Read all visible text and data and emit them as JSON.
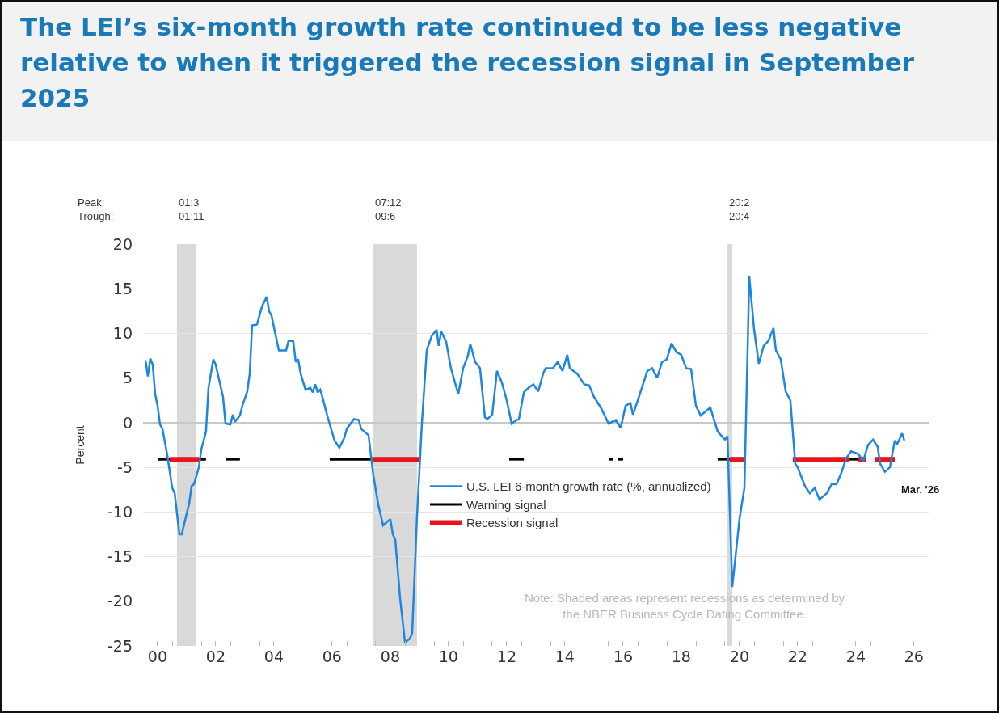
{
  "chart_data": {
    "type": "line",
    "title": "The LEI’s six-month growth rate continued to be less negative relative to when it triggered the recession signal in September 2025",
    "ylabel": "Percent",
    "xlim": [
      "2000-01",
      "2027-01"
    ],
    "xticks": [
      {
        "value": "2000-07",
        "label": "00"
      },
      {
        "value": "2001-01",
        "label": null
      },
      {
        "value": "2002-01",
        "label": null
      },
      {
        "value": "2002-07",
        "label": "02"
      },
      {
        "value": "2003-01",
        "label": null
      },
      {
        "value": "2004-01",
        "label": null
      },
      {
        "value": "2004-07",
        "label": "04"
      },
      {
        "value": "2005-01",
        "label": null
      },
      {
        "value": "2006-01",
        "label": null
      },
      {
        "value": "2006-07",
        "label": "06"
      },
      {
        "value": "2007-01",
        "label": null
      },
      {
        "value": "2008-01",
        "label": null
      },
      {
        "value": "2008-07",
        "label": "08"
      },
      {
        "value": "2009-01",
        "label": null
      },
      {
        "value": "2010-01",
        "label": null
      },
      {
        "value": "2010-07",
        "label": "10"
      },
      {
        "value": "2011-01",
        "label": null
      },
      {
        "value": "2012-01",
        "label": null
      },
      {
        "value": "2012-07",
        "label": "12"
      },
      {
        "value": "2013-01",
        "label": null
      },
      {
        "value": "2014-01",
        "label": null
      },
      {
        "value": "2014-07",
        "label": "14"
      },
      {
        "value": "2015-01",
        "label": null
      },
      {
        "value": "2016-01",
        "label": null
      },
      {
        "value": "2016-07",
        "label": "16"
      },
      {
        "value": "2017-01",
        "label": null
      },
      {
        "value": "2018-01",
        "label": null
      },
      {
        "value": "2018-07",
        "label": "18"
      },
      {
        "value": "2019-01",
        "label": null
      },
      {
        "value": "2020-01",
        "label": null
      },
      {
        "value": "2020-07",
        "label": "20"
      },
      {
        "value": "2021-01",
        "label": null
      },
      {
        "value": "2022-01",
        "label": null
      },
      {
        "value": "2022-07",
        "label": "22"
      },
      {
        "value": "2023-01",
        "label": null
      },
      {
        "value": "2024-01",
        "label": null
      },
      {
        "value": "2024-07",
        "label": "24"
      },
      {
        "value": "2025-01",
        "label": null
      },
      {
        "value": "2026-01",
        "label": null
      },
      {
        "value": "2026-07",
        "label": "26"
      }
    ],
    "ylim": [
      -25,
      20
    ],
    "yticks": [
      -25,
      -20,
      -15,
      -10,
      -5,
      0,
      5,
      10,
      15,
      20
    ],
    "grid": "y",
    "legend": "center",
    "series": [
      {
        "name": "U.S. LEI 6-month growth rate (%, annualized)",
        "color": "#1f86e0",
        "x": [
          "2000-02",
          "2000-03",
          "2000-04",
          "2000-05",
          "2000-06",
          "2000-07",
          "2000-08",
          "2000-09",
          "2000-11",
          "2001-01",
          "2001-02",
          "2001-04",
          "2001-05",
          "2001-07",
          "2001-08",
          "2001-09",
          "2001-10",
          "2001-12",
          "2002-01",
          "2002-03",
          "2002-04",
          "2002-06",
          "2002-07",
          "2002-10",
          "2002-11",
          "2003-01",
          "2003-02",
          "2003-03",
          "2003-05",
          "2003-06",
          "2003-08",
          "2003-09",
          "2003-10",
          "2003-12",
          "2004-02",
          "2004-04",
          "2004-05",
          "2004-06",
          "2004-07",
          "2004-09",
          "2004-12",
          "2005-01",
          "2005-03",
          "2005-04",
          "2005-05",
          "2005-06",
          "2005-08",
          "2005-10",
          "2005-11",
          "2005-12",
          "2006-01",
          "2006-02",
          "2006-03",
          "2006-05",
          "2006-08",
          "2006-10",
          "2006-12",
          "2007-01",
          "2007-04",
          "2007-06",
          "2007-07",
          "2007-10",
          "2007-11",
          "2007-12",
          "2008-02",
          "2008-04",
          "2008-07",
          "2008-08",
          "2008-09",
          "2008-11",
          "2009-01",
          "2009-03",
          "2009-04",
          "2009-06",
          "2009-08",
          "2009-10",
          "2009-12",
          "2010-02",
          "2010-03",
          "2010-04",
          "2010-06",
          "2010-08",
          "2010-11",
          "2011-01",
          "2011-03",
          "2011-04",
          "2011-06",
          "2011-08",
          "2011-10",
          "2011-11",
          "2012-01",
          "2012-03",
          "2012-05",
          "2012-07",
          "2012-09",
          "2012-11",
          "2012-12",
          "2013-02",
          "2013-04",
          "2013-06",
          "2013-08",
          "2013-10",
          "2013-11",
          "2014-02",
          "2014-04",
          "2014-06",
          "2014-08",
          "2014-09",
          "2014-12",
          "2015-03",
          "2015-05",
          "2015-07",
          "2015-10",
          "2016-01",
          "2016-04",
          "2016-06",
          "2016-08",
          "2016-10",
          "2016-11",
          "2017-01",
          "2017-05",
          "2017-07",
          "2017-09",
          "2017-11",
          "2018-01",
          "2018-03",
          "2018-05",
          "2018-07",
          "2018-09",
          "2018-11",
          "2019-01",
          "2019-03",
          "2019-07",
          "2019-10",
          "2020-01",
          "2020-02",
          "2020-04",
          "2020-07",
          "2020-09",
          "2020-11",
          "2021-01",
          "2021-03",
          "2021-05",
          "2021-07",
          "2021-09",
          "2021-10",
          "2021-12",
          "2022-02",
          "2022-04",
          "2022-06",
          "2022-07",
          "2022-10",
          "2022-12",
          "2023-02",
          "2023-04",
          "2023-07",
          "2023-09",
          "2023-11",
          "2024-01",
          "2024-03",
          "2024-05",
          "2024-08",
          "2024-10",
          "2024-12",
          "2025-02",
          "2025-04",
          "2025-05",
          "2025-07",
          "2025-09",
          "2025-11",
          "2025-12",
          "2026-02",
          "2026-03"
        ],
        "values": [
          7.0,
          5.2,
          7.2,
          6.5,
          3.2,
          1.9,
          -0.2,
          -0.7,
          -3.7,
          -7.3,
          -7.9,
          -12.5,
          -12.5,
          -10.2,
          -9.1,
          -7.1,
          -6.9,
          -5.0,
          -3.0,
          -1.0,
          3.9,
          7.1,
          6.5,
          2.9,
          -0.1,
          -0.2,
          0.9,
          0.1,
          0.8,
          1.9,
          3.5,
          5.5,
          10.9,
          11.0,
          13.0,
          14.1,
          12.5,
          12.0,
          10.7,
          8.1,
          8.1,
          9.2,
          9.1,
          6.8,
          7.1,
          5.5,
          3.7,
          3.9,
          3.4,
          4.3,
          3.4,
          3.7,
          2.9,
          0.8,
          -2.0,
          -2.8,
          -1.7,
          -0.7,
          0.4,
          0.3,
          -0.7,
          -1.4,
          -3.7,
          -5.9,
          -9.2,
          -11.5,
          -10.8,
          -12.5,
          -13.1,
          -19.7,
          -24.6,
          -24.2,
          -23.6,
          -10.5,
          -0.1,
          8.1,
          9.7,
          10.4,
          8.6,
          10.2,
          9.1,
          6.1,
          3.2,
          6.1,
          7.5,
          8.8,
          6.8,
          6.1,
          0.6,
          0.4,
          0.9,
          5.8,
          4.5,
          2.5,
          -0.1,
          0.3,
          0.4,
          3.4,
          3.9,
          4.3,
          3.5,
          5.5,
          6.1,
          6.1,
          6.8,
          5.8,
          7.6,
          6.1,
          5.5,
          4.3,
          4.2,
          2.9,
          1.6,
          -0.1,
          0.3,
          -0.6,
          1.9,
          2.2,
          0.9,
          2.5,
          5.8,
          6.1,
          5.0,
          6.8,
          7.1,
          8.9,
          7.9,
          7.6,
          6.1,
          6.0,
          1.9,
          0.8,
          1.7,
          -1.0,
          -1.9,
          -1.5,
          -18.4,
          -10.8,
          -7.3,
          16.4,
          10.4,
          6.6,
          8.6,
          9.2,
          10.6,
          8.1,
          7.1,
          3.5,
          2.5,
          -4.6,
          -5.0,
          -7.1,
          -7.9,
          -7.3,
          -8.6,
          -7.9,
          -6.9,
          -6.9,
          -5.6,
          -4.0,
          -3.2,
          -3.5,
          -4.3,
          -2.5,
          -1.9,
          -2.7,
          -4.6,
          -5.5,
          -5.0,
          -2.0,
          -2.4,
          -1.2,
          -2.0
        ]
      },
      {
        "name": "Warning signal",
        "color": "#000000",
        "x": [
          "2000-07",
          "2002-03",
          null,
          "2002-11",
          "2003-05",
          null,
          "2006-06",
          "2007-11",
          null,
          "2012-08",
          "2013-02",
          null,
          "2016-01",
          "2016-03",
          null,
          "2016-05",
          "2016-07",
          null,
          "2019-10",
          "2020-03",
          null,
          "2024-04",
          "2024-08"
        ],
        "values": [
          -4.1,
          -4.1,
          null,
          -4.1,
          -4.1,
          null,
          -4.1,
          -4.1,
          null,
          -4.1,
          -4.1,
          null,
          -4.1,
          -4.1,
          null,
          -4.1,
          -4.1,
          null,
          -4.1,
          -4.1,
          null,
          -4.1,
          -4.1
        ]
      },
      {
        "name": "Recession signal",
        "color": "#e8141c",
        "x": [
          "2000-12",
          "2001-12",
          null,
          "2007-11",
          "2009-07",
          null,
          "2020-03",
          "2020-09",
          null,
          "2022-05",
          "2024-04",
          null,
          "2024-08",
          "2024-11",
          null,
          "2025-03",
          "2025-11"
        ],
        "values": [
          -4.1,
          -4.1,
          null,
          -4.1,
          -4.1,
          null,
          -4.1,
          -4.1,
          null,
          -4.1,
          -4.1,
          null,
          -4.1,
          -4.1,
          null,
          -4.1,
          -4.1
        ]
      }
    ],
    "bands": [
      {
        "axis": "x",
        "from": "2001-03",
        "to": "2001-11",
        "label": "01:3\n01:11",
        "color": "#d9d9d9"
      },
      {
        "axis": "x",
        "from": "2007-12",
        "to": "2009-06",
        "label": "07:12\n09:6",
        "color": "#d9d9d9"
      },
      {
        "axis": "x",
        "from": "2020-02",
        "to": "2020-04",
        "label": "20:2\n20:4",
        "color": "#d9d9d9"
      }
    ],
    "annotations": [
      "Peak:\nTrough:",
      "Mar. '26",
      "Note: Shaded areas represent recessions as determined by\nthe NBER Business Cycle Dating Committee."
    ]
  }
}
